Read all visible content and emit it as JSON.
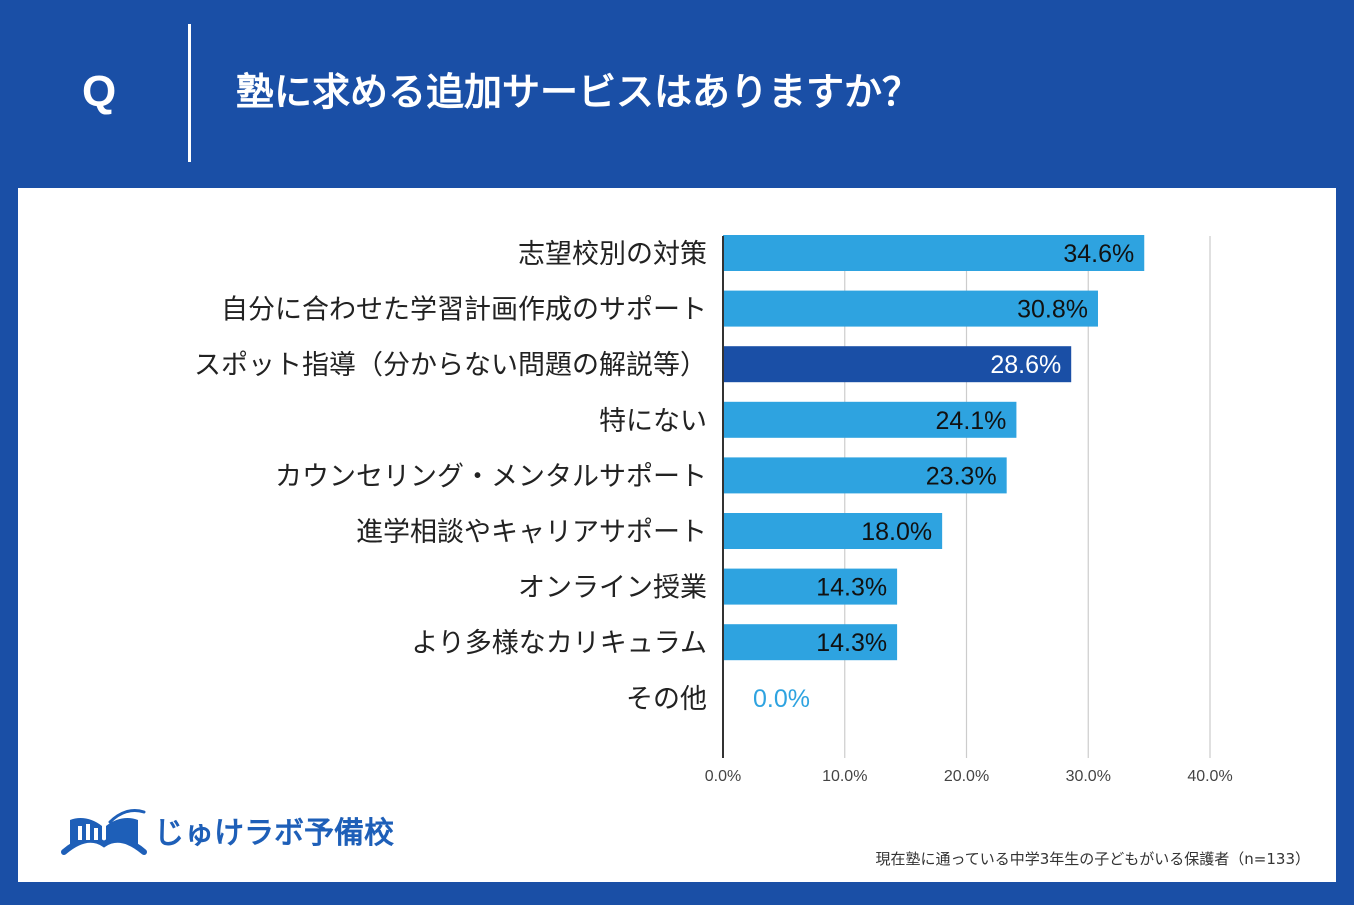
{
  "header": {
    "q_mark": "Q",
    "question": "塾に求める追加サービスはありますか？"
  },
  "colors": {
    "background": "#1a4fa6",
    "bar": "#2ea3e0",
    "bar_highlight": "#1a4fa6",
    "gridline": "#cccccc",
    "axis": "#333333"
  },
  "logo": {
    "icon": "book-logo-icon",
    "text": "じゅけラボ予備校"
  },
  "footnote": "現在塾に通っている中学3年生の子どもがいる保護者（n=133）",
  "chart_data": {
    "type": "bar",
    "orientation": "horizontal",
    "title": "塾に求める追加サービスはありますか？",
    "categories": [
      "志望校別の対策",
      "自分に合わせた学習計画作成のサポート",
      "スポット指導（分からない問題の解説等）",
      "特にない",
      "カウンセリング・メンタルサポート",
      "進学相談やキャリアサポート",
      "オンライン授業",
      "より多様なカリキュラム",
      "その他"
    ],
    "values": [
      34.6,
      30.8,
      28.6,
      24.1,
      23.3,
      18.0,
      14.3,
      14.3,
      0.0
    ],
    "value_labels": [
      "34.6%",
      "30.8%",
      "28.6%",
      "24.1%",
      "23.3%",
      "18.0%",
      "14.3%",
      "14.3%",
      "0.0%"
    ],
    "highlight_index": 2,
    "xlim": [
      0,
      40
    ],
    "xticks": [
      0,
      10,
      20,
      30,
      40
    ],
    "xtick_labels": [
      "0.0%",
      "10.0%",
      "20.0%",
      "30.0%",
      "40.0%"
    ],
    "xlabel": "",
    "ylabel": "",
    "grid": true
  }
}
